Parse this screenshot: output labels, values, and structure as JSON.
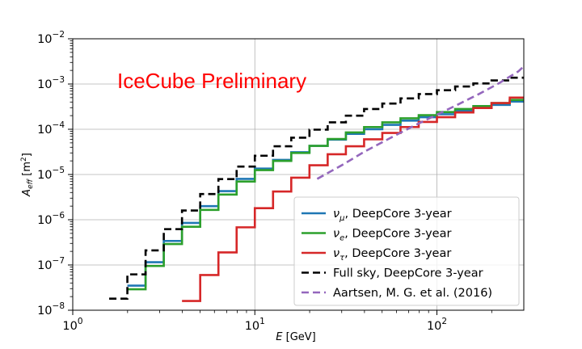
{
  "chart_data": {
    "type": "line",
    "xscale": "log",
    "yscale": "log",
    "xlim": [
      1,
      300
    ],
    "ylim": [
      1e-08,
      0.01
    ],
    "grid": true,
    "legend_position": "bottom-right",
    "xlabel": {
      "main": "E",
      "unit": " [GeV]"
    },
    "ylabel": {
      "main": "A",
      "sub": "eff",
      "unit_prefix": " [m",
      "unit_sup": "2",
      "unit_suffix": "]"
    },
    "x_ticks": [
      {
        "value": 1,
        "base": "10",
        "exp": "0"
      },
      {
        "value": 10,
        "base": "10",
        "exp": "1"
      },
      {
        "value": 100,
        "base": "10",
        "exp": "2"
      }
    ],
    "y_ticks": [
      {
        "value": 1e-08,
        "base": "10",
        "exp": "−8"
      },
      {
        "value": 1e-07,
        "base": "10",
        "exp": "−7"
      },
      {
        "value": 1e-06,
        "base": "10",
        "exp": "−6"
      },
      {
        "value": 1e-05,
        "base": "10",
        "exp": "−5"
      },
      {
        "value": 0.0001,
        "base": "10",
        "exp": "−4"
      },
      {
        "value": 0.001,
        "base": "10",
        "exp": "−3"
      },
      {
        "value": 0.01,
        "base": "10",
        "exp": "−2"
      }
    ],
    "annotation": {
      "text": "IceCube Preliminary",
      "color": "#ff0000"
    },
    "bin_edges": [
      1.585,
      1.995,
      2.512,
      3.162,
      3.981,
      5.012,
      6.31,
      7.943,
      10.0,
      12.589,
      15.849,
      19.953,
      25.119,
      31.623,
      39.811,
      50.119,
      63.096,
      79.433,
      100.0,
      125.893,
      158.489,
      199.526,
      251.189,
      316.228
    ],
    "series": [
      {
        "key": "nu_mu",
        "style": "step",
        "color": "#1f77b4",
        "dash": "",
        "legend": {
          "sym": "ν",
          "sub": "μ",
          "text": ", DeepCore 3-year"
        },
        "values": [
          null,
          3.5e-08,
          1.15e-07,
          3.4e-07,
          8.5e-07,
          2e-06,
          4.3e-06,
          8e-06,
          1.35e-05,
          2.1e-05,
          3.1e-05,
          4.3e-05,
          5.9e-05,
          7.9e-05,
          0.0001,
          0.000125,
          0.000155,
          0.000185,
          0.000215,
          0.000255,
          0.000295,
          0.000345,
          0.00041
        ]
      },
      {
        "key": "nu_e",
        "style": "step",
        "color": "#2ca02c",
        "dash": "",
        "legend": {
          "sym": "ν",
          "sub": "e",
          "text": ", DeepCore 3-year"
        },
        "values": [
          null,
          2.9e-08,
          9.5e-08,
          2.9e-07,
          7e-07,
          1.65e-06,
          3.6e-06,
          7e-06,
          1.25e-05,
          2e-05,
          3e-05,
          4.3e-05,
          6.1e-05,
          8.5e-05,
          0.000112,
          0.000142,
          0.000175,
          0.000205,
          0.00024,
          0.00028,
          0.000325,
          0.00038,
          0.000445
        ]
      },
      {
        "key": "nu_tau",
        "style": "step",
        "color": "#d62728",
        "dash": "",
        "legend": {
          "sym": "ν",
          "sub": "τ",
          "text": ", DeepCore 3-year"
        },
        "values": [
          null,
          null,
          null,
          null,
          1.6e-08,
          6e-08,
          1.9e-07,
          6.8e-07,
          1.8e-06,
          4.2e-06,
          8.5e-06,
          1.6e-05,
          2.8e-05,
          4.2e-05,
          6e-05,
          8.3e-05,
          0.000112,
          0.000145,
          0.000185,
          0.000235,
          0.000295,
          0.00038,
          0.0005
        ]
      },
      {
        "key": "full_sky",
        "style": "step",
        "color": "#000000",
        "dash": "9,5",
        "legend": {
          "sym": "",
          "sub": "",
          "text": "Full sky, DeepCore 3-year"
        },
        "values": [
          1.8e-08,
          6.2e-08,
          2.1e-07,
          6.2e-07,
          1.6e-06,
          3.7e-06,
          7.9e-06,
          1.5e-05,
          2.6e-05,
          4.2e-05,
          6.5e-05,
          9.8e-05,
          0.000142,
          0.0002,
          0.00028,
          0.00037,
          0.00048,
          0.0006,
          0.00073,
          0.00088,
          0.00103,
          0.0012,
          0.00138
        ]
      },
      {
        "key": "aartsen",
        "style": "line",
        "color": "#9467bd",
        "dash": "9,5",
        "legend": {
          "sym": "",
          "sub": "",
          "text": "Aartsen, M. G. et al. (2016)"
        },
        "x": [
          22,
          30,
          40,
          55,
          75,
          100,
          130,
          170,
          220,
          280,
          316
        ],
        "values": [
          8e-06,
          1.6e-05,
          3.2e-05,
          6.3e-05,
          0.00012,
          0.00021,
          0.00035,
          0.0006,
          0.00105,
          0.0019,
          0.003
        ]
      }
    ]
  }
}
